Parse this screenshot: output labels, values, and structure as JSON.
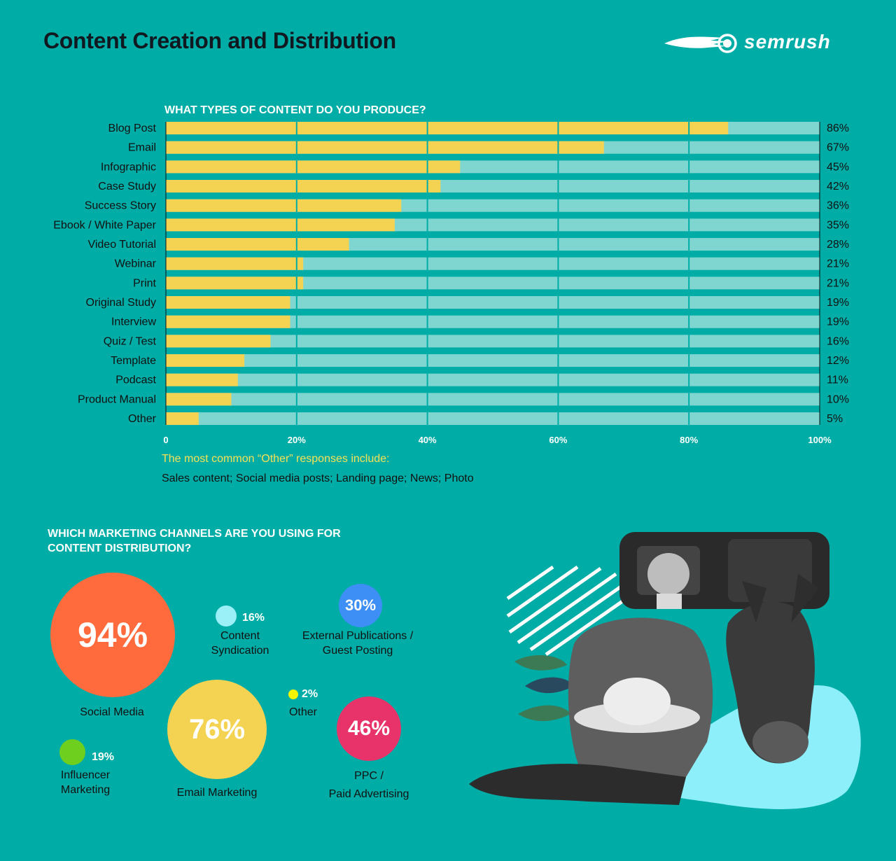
{
  "header": {
    "title": "Content Creation and Distribution",
    "logo_text": "semrush"
  },
  "chart_data": [
    {
      "type": "bar",
      "orientation": "horizontal",
      "title": "WHAT TYPES OF CONTENT DO YOU PRODUCE?",
      "categories": [
        "Blog Post",
        "Email",
        "Infographic",
        "Case Study",
        "Success Story",
        "Ebook / White Paper",
        "Video Tutorial",
        "Webinar",
        "Print",
        "Original Study",
        "Interview",
        "Quiz / Test",
        "Template",
        "Podcast",
        "Product Manual",
        "Other"
      ],
      "values": [
        86,
        67,
        45,
        42,
        36,
        35,
        28,
        21,
        21,
        19,
        19,
        16,
        12,
        11,
        10,
        5
      ],
      "value_labels": [
        "86%",
        "67%",
        "45%",
        "42%",
        "36%",
        "35%",
        "28%",
        "21%",
        "21%",
        "19%",
        "19%",
        "16%",
        "12%",
        "11%",
        "10%",
        "5%"
      ],
      "xlim": [
        0,
        100
      ],
      "xticks": [
        "0",
        "20%",
        "40%",
        "60%",
        "80%",
        "100%"
      ],
      "grid": true,
      "colors": {
        "bar": "#F5D352",
        "track": "#7FD6D1",
        "background": "#00ACA6"
      }
    },
    {
      "type": "bubble",
      "title": "WHICH MARKETING CHANNELS ARE YOU USING FOR CONTENT DISTRIBUTION?",
      "items": [
        {
          "name": "Social Media",
          "value": 94,
          "label": "94%",
          "color": "#FF6B3D"
        },
        {
          "name": "Email Marketing",
          "value": 76,
          "label": "76%",
          "color": "#F5D352"
        },
        {
          "name": "PPC / Paid Advertising",
          "value": 46,
          "label": "46%",
          "color": "#E8336A"
        },
        {
          "name": "External Publications / Guest Posting",
          "value": 30,
          "label": "30%",
          "color": "#3D8FF5"
        },
        {
          "name": "Influencer Marketing",
          "value": 19,
          "label": "19%",
          "color": "#6FCF1F"
        },
        {
          "name": "Content Syndication",
          "value": 16,
          "label": "16%",
          "color": "#9BEFF7"
        },
        {
          "name": "Other",
          "value": 2,
          "label": "2%",
          "color": "#F5F500"
        }
      ]
    }
  ],
  "other_note": {
    "title": "The most common “Other” responses include:",
    "body": "Sales content; Social media posts; Landing page; News; Photo"
  },
  "channels": {
    "title_line1": "WHICH MARKETING CHANNELS ARE YOU USING FOR",
    "title_line2": "CONTENT DISTRIBUTION?",
    "social": {
      "pct": "94%",
      "label": "Social Media"
    },
    "email": {
      "pct": "76%",
      "label": "Email Marketing"
    },
    "ppc": {
      "pct": "46%",
      "label_line1": "PPC /",
      "label_line2": "Paid Advertising"
    },
    "external": {
      "pct": "30%",
      "label_line1": "External Publications /",
      "label_line2": "Guest Posting"
    },
    "influencer": {
      "pct": "19%",
      "label_line1": "Influencer",
      "label_line2": "Marketing"
    },
    "syndication": {
      "pct": "16%",
      "label_line1": "Content",
      "label_line2": "Syndication"
    },
    "other": {
      "pct": "2%",
      "label": "Other"
    }
  }
}
